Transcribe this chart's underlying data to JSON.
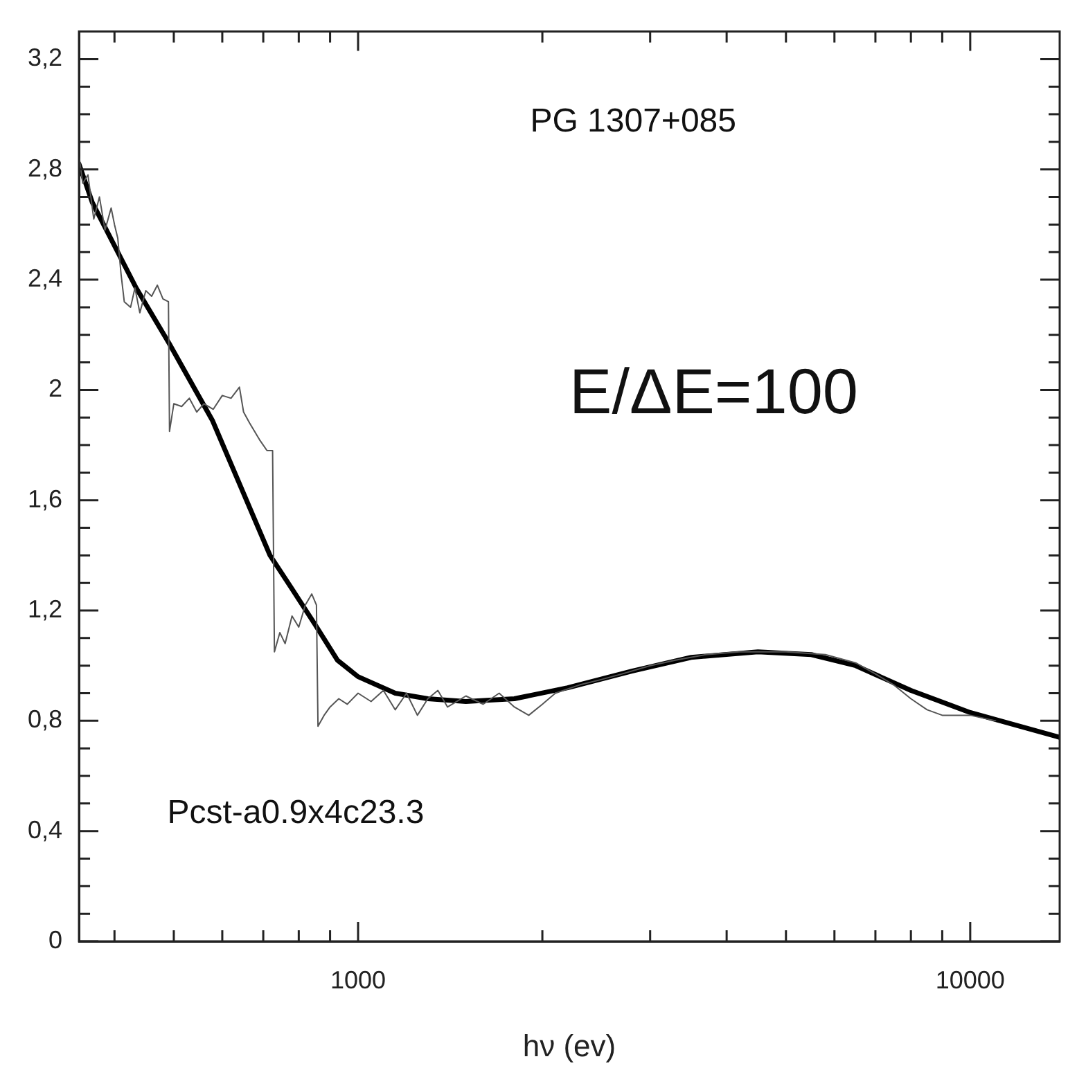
{
  "chart_data": {
    "type": "line",
    "xlabel": "hν (ev)",
    "annotations": [
      "PG 1307+085",
      "E/ΔE=100",
      "Pcst-a0.9x4c23.3"
    ],
    "log": "x",
    "grid": false,
    "legend": false,
    "marker": "none",
    "line_style": "solid",
    "xlim": [
      350,
      14000
    ],
    "xticks": [
      {
        "value": 400,
        "label": null
      },
      {
        "value": 500,
        "label": null
      },
      {
        "value": 600,
        "label": null
      },
      {
        "value": 700,
        "label": null
      },
      {
        "value": 800,
        "label": null
      },
      {
        "value": 900,
        "label": null
      },
      1000,
      {
        "value": 2000,
        "label": null
      },
      {
        "value": 3000,
        "label": null
      },
      {
        "value": 4000,
        "label": null
      },
      {
        "value": 5000,
        "label": null
      },
      {
        "value": 6000,
        "label": null
      },
      {
        "value": 7000,
        "label": null
      },
      {
        "value": 8000,
        "label": null
      },
      {
        "value": 9000,
        "label": null
      },
      10000
    ],
    "ylim": [
      0,
      3.3
    ],
    "yticks": [
      {
        "value": 0,
        "label": "0"
      },
      {
        "value": 0.1,
        "label": null
      },
      {
        "value": 0.2,
        "label": null
      },
      {
        "value": 0.3,
        "label": null
      },
      {
        "value": 0.4,
        "label": "0,4"
      },
      {
        "value": 0.5,
        "label": null
      },
      {
        "value": 0.6,
        "label": null
      },
      {
        "value": 0.7,
        "label": null
      },
      {
        "value": 0.8,
        "label": "0,8"
      },
      {
        "value": 0.9,
        "label": null
      },
      {
        "value": 1.0,
        "label": null
      },
      {
        "value": 1.1,
        "label": null
      },
      {
        "value": 1.2,
        "label": "1,2"
      },
      {
        "value": 1.3,
        "label": null
      },
      {
        "value": 1.4,
        "label": null
      },
      {
        "value": 1.5,
        "label": null
      },
      {
        "value": 1.6,
        "label": "1,6"
      },
      {
        "value": 1.7,
        "label": null
      },
      {
        "value": 1.8,
        "label": null
      },
      {
        "value": 1.9,
        "label": null
      },
      {
        "value": 2.0,
        "label": "2"
      },
      {
        "value": 2.1,
        "label": null
      },
      {
        "value": 2.2,
        "label": null
      },
      {
        "value": 2.3,
        "label": null
      },
      {
        "value": 2.4,
        "label": "2,4"
      },
      {
        "value": 2.5,
        "label": null
      },
      {
        "value": 2.6,
        "label": null
      },
      {
        "value": 2.7,
        "label": null
      },
      {
        "value": 2.8,
        "label": "2,8"
      },
      {
        "value": 2.9,
        "label": null
      },
      {
        "value": 3.0,
        "label": null
      },
      {
        "value": 3.1,
        "label": null
      },
      {
        "value": 3.2,
        "label": "3,2"
      }
    ],
    "series": [
      {
        "color": "#555555",
        "x": [
          350,
          355,
          362,
          370,
          378,
          386,
          395,
          400,
          405,
          410,
          415,
          425,
          432,
          440,
          450,
          460,
          470,
          480,
          490,
          492,
          500,
          515,
          530,
          545,
          560,
          580,
          600,
          620,
          640,
          650,
          665,
          690,
          710,
          725,
          730,
          745,
          760,
          780,
          800,
          820,
          840,
          855,
          860,
          880,
          900,
          930,
          960,
          1000,
          1050,
          1100,
          1150,
          1200,
          1250,
          1300,
          1350,
          1400,
          1500,
          1600,
          1700,
          1800,
          1900,
          2000,
          2100,
          2300,
          2500,
          2700,
          3000,
          3300,
          3700,
          4200,
          5000,
          5800,
          6500,
          7000,
          7500,
          8000,
          8500,
          9000,
          10000,
          11000
        ],
        "values": [
          2.85,
          2.75,
          2.78,
          2.62,
          2.7,
          2.58,
          2.66,
          2.6,
          2.55,
          2.42,
          2.32,
          2.3,
          2.37,
          2.28,
          2.36,
          2.34,
          2.38,
          2.33,
          2.32,
          1.85,
          1.95,
          1.94,
          1.97,
          1.92,
          1.95,
          1.93,
          1.98,
          1.97,
          2.01,
          1.92,
          1.88,
          1.82,
          1.78,
          1.78,
          1.05,
          1.12,
          1.08,
          1.18,
          1.14,
          1.22,
          1.26,
          1.22,
          0.78,
          0.82,
          0.85,
          0.88,
          0.86,
          0.9,
          0.87,
          0.91,
          0.84,
          0.9,
          0.82,
          0.88,
          0.91,
          0.85,
          0.89,
          0.86,
          0.9,
          0.85,
          0.82,
          0.86,
          0.9,
          0.93,
          0.95,
          0.97,
          1.0,
          1.02,
          1.04,
          1.05,
          1.05,
          1.04,
          1.01,
          0.97,
          0.93,
          0.88,
          0.84,
          0.82,
          0.82,
          0.8
        ]
      },
      {
        "color": "#000000",
        "x": [
          350,
          368,
          434,
          491,
          578,
          718,
          779,
          850,
          925,
          1000,
          1150,
          1300,
          1500,
          1800,
          2200,
          2800,
          3500,
          4500,
          5500,
          6500,
          8000,
          10000,
          14000
        ],
        "values": [
          2.82,
          2.68,
          2.37,
          2.17,
          1.89,
          1.4,
          1.28,
          1.15,
          1.02,
          0.96,
          0.9,
          0.88,
          0.87,
          0.88,
          0.92,
          0.98,
          1.03,
          1.05,
          1.04,
          1.0,
          0.91,
          0.83,
          0.74
        ]
      }
    ]
  }
}
